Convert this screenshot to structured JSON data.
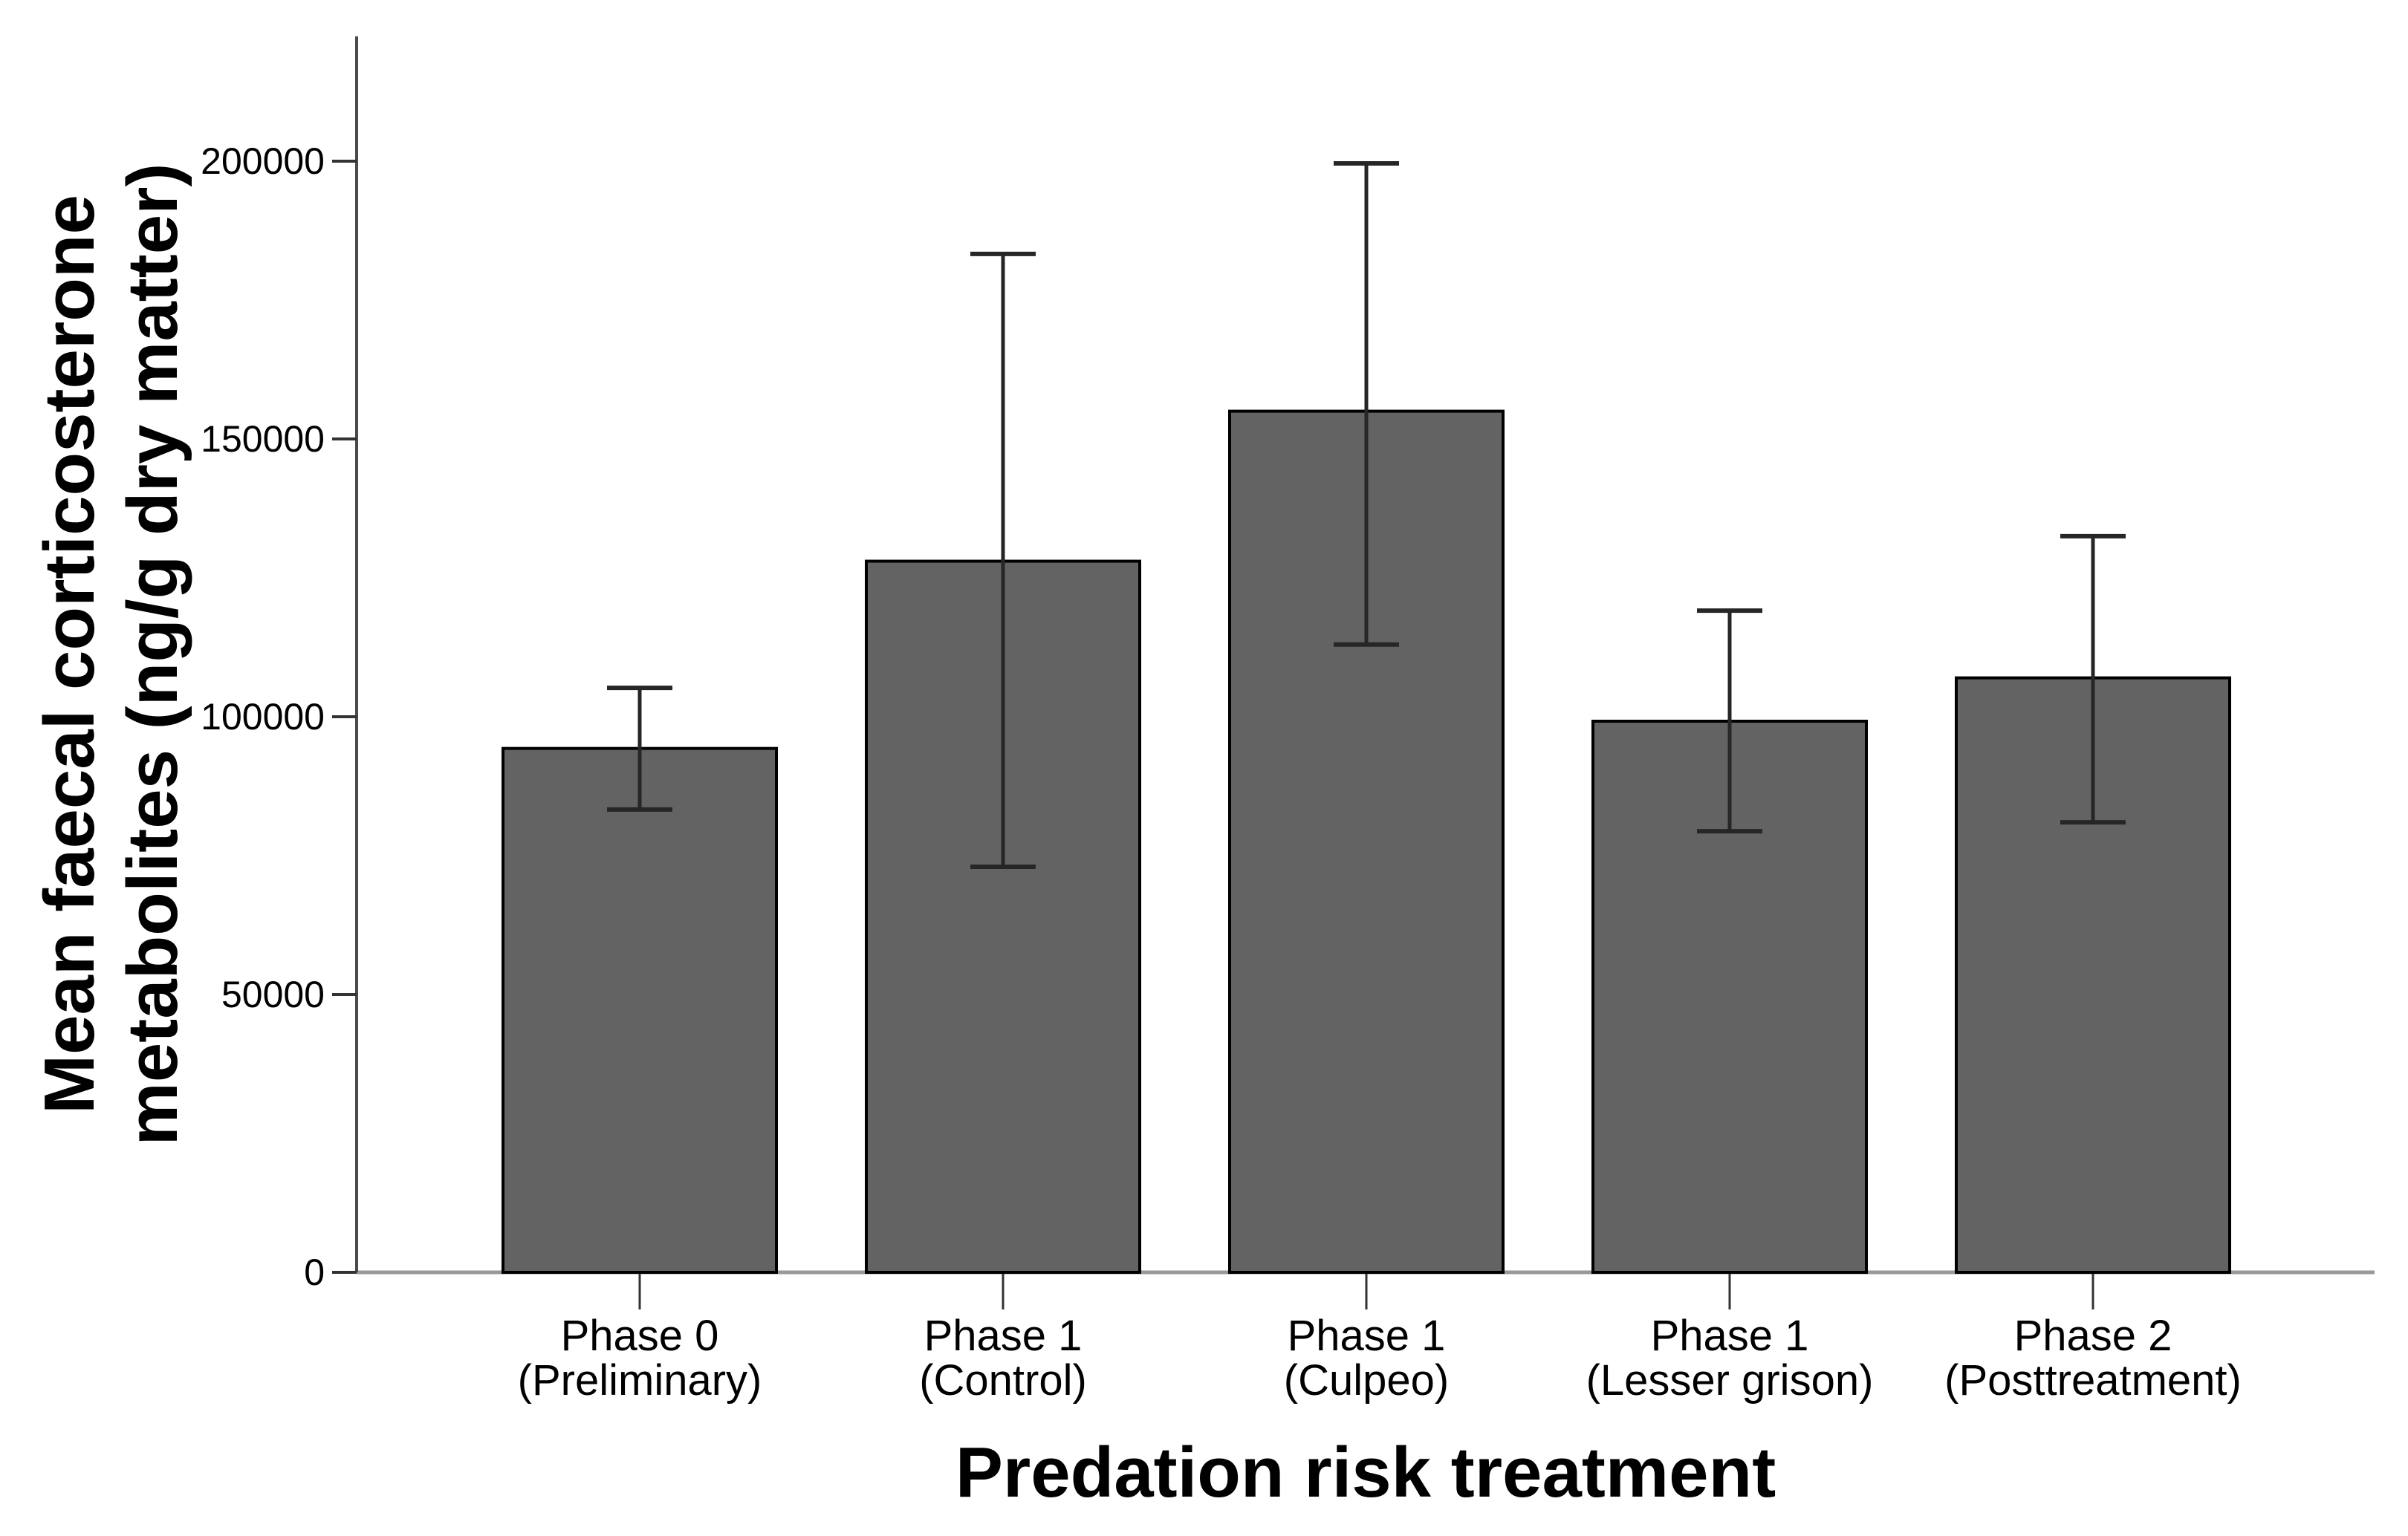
{
  "figure": {
    "background": "#ffffff"
  },
  "chart_data": {
    "type": "bar",
    "title": "",
    "xlabel": "Predation risk treatment",
    "ylabel": "Mean faecal corticosterone metabolites (ng/g dry matter)",
    "ylabel_line1": "Mean faecal corticosterone",
    "ylabel_line2": "metabolites (ng/g dry matter)",
    "categories": [
      "Phase 0 (Preliminary)",
      "Phase 1 (Control)",
      "Phase 1 (Culpeo)",
      "Phase 1 (Lesser grison)",
      "Phase 2 (Posttreatment)"
    ],
    "categories_line1": [
      "Phase 0",
      "Phase 1",
      "Phase 1",
      "Phase 1",
      "Phase 2"
    ],
    "categories_line2": [
      "(Preliminary)",
      "(Control)",
      "(Culpeo)",
      "(Lesser grison)",
      "(Posttreatment)"
    ],
    "values": [
      94300,
      128000,
      155000,
      99200,
      107000
    ],
    "error_low": [
      83300,
      73000,
      113000,
      79400,
      81000
    ],
    "error_high": [
      105200,
      183300,
      199600,
      119100,
      132500
    ],
    "yticks": [
      0,
      50000,
      100000,
      150000,
      200000
    ],
    "ytick_labels": [
      "0",
      "50000",
      "100000",
      "150000",
      "200000"
    ],
    "ylim": [
      0,
      222000
    ],
    "grid": false,
    "legend": false,
    "colors": {
      "bar_fill": "#636363",
      "bar_border": "#000000",
      "error_bar": "#262626",
      "y_axis_line": "#4a4a4a",
      "baseline": "#999999",
      "tick": "#333333",
      "text": "#000000"
    }
  }
}
